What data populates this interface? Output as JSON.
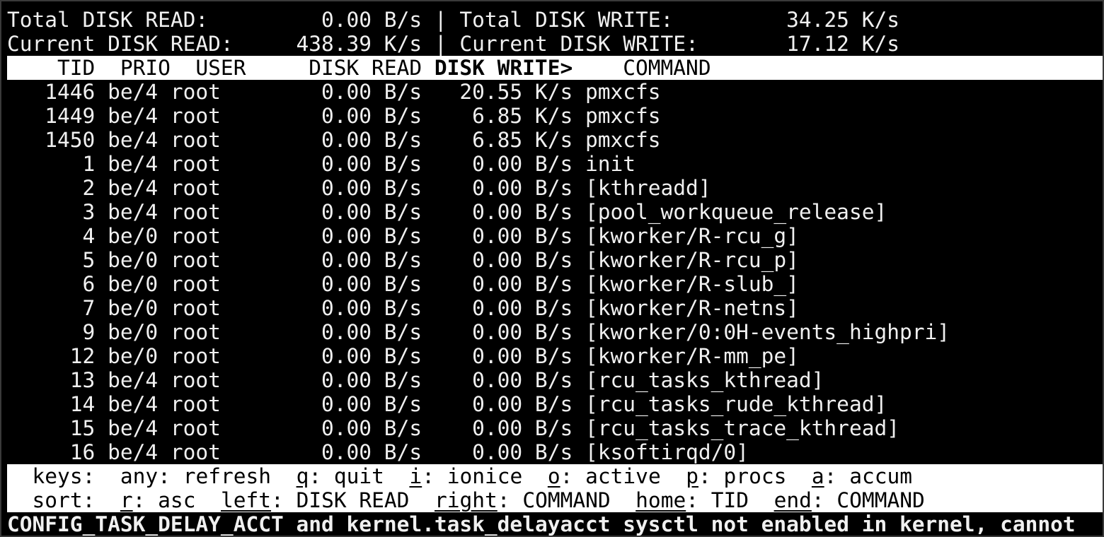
{
  "summary": {
    "total_read_label": "Total DISK READ:",
    "total_read_value": "0.00 B/s",
    "total_write_label": "Total DISK WRITE:",
    "total_write_value": "34.25 K/s",
    "current_read_label": "Current DISK READ:",
    "current_read_value": "438.39 K/s",
    "current_write_label": "Current DISK WRITE:",
    "current_write_value": "17.12 K/s",
    "separator": "|"
  },
  "columns": {
    "tid": "TID",
    "prio": "PRIO",
    "user": "USER",
    "disk_read": "DISK READ",
    "disk_write": "DISK WRITE>",
    "command": "COMMAND",
    "sorted_column": "disk_write"
  },
  "rows": [
    {
      "tid": "1446",
      "prio": "be/4",
      "user": "root",
      "read": "0.00 B/s",
      "write": "20.55 K/s",
      "command": "pmxcfs"
    },
    {
      "tid": "1449",
      "prio": "be/4",
      "user": "root",
      "read": "0.00 B/s",
      "write": "6.85 K/s",
      "command": "pmxcfs"
    },
    {
      "tid": "1450",
      "prio": "be/4",
      "user": "root",
      "read": "0.00 B/s",
      "write": "6.85 K/s",
      "command": "pmxcfs"
    },
    {
      "tid": "1",
      "prio": "be/4",
      "user": "root",
      "read": "0.00 B/s",
      "write": "0.00 B/s",
      "command": "init"
    },
    {
      "tid": "2",
      "prio": "be/4",
      "user": "root",
      "read": "0.00 B/s",
      "write": "0.00 B/s",
      "command": "[kthreadd]"
    },
    {
      "tid": "3",
      "prio": "be/4",
      "user": "root",
      "read": "0.00 B/s",
      "write": "0.00 B/s",
      "command": "[pool_workqueue_release]"
    },
    {
      "tid": "4",
      "prio": "be/0",
      "user": "root",
      "read": "0.00 B/s",
      "write": "0.00 B/s",
      "command": "[kworker/R-rcu_g]"
    },
    {
      "tid": "5",
      "prio": "be/0",
      "user": "root",
      "read": "0.00 B/s",
      "write": "0.00 B/s",
      "command": "[kworker/R-rcu_p]"
    },
    {
      "tid": "6",
      "prio": "be/0",
      "user": "root",
      "read": "0.00 B/s",
      "write": "0.00 B/s",
      "command": "[kworker/R-slub_]"
    },
    {
      "tid": "7",
      "prio": "be/0",
      "user": "root",
      "read": "0.00 B/s",
      "write": "0.00 B/s",
      "command": "[kworker/R-netns]"
    },
    {
      "tid": "9",
      "prio": "be/0",
      "user": "root",
      "read": "0.00 B/s",
      "write": "0.00 B/s",
      "command": "[kworker/0:0H-events_highpri]"
    },
    {
      "tid": "12",
      "prio": "be/0",
      "user": "root",
      "read": "0.00 B/s",
      "write": "0.00 B/s",
      "command": "[kworker/R-mm_pe]"
    },
    {
      "tid": "13",
      "prio": "be/4",
      "user": "root",
      "read": "0.00 B/s",
      "write": "0.00 B/s",
      "command": "[rcu_tasks_kthread]"
    },
    {
      "tid": "14",
      "prio": "be/4",
      "user": "root",
      "read": "0.00 B/s",
      "write": "0.00 B/s",
      "command": "[rcu_tasks_rude_kthread]"
    },
    {
      "tid": "15",
      "prio": "be/4",
      "user": "root",
      "read": "0.00 B/s",
      "write": "0.00 B/s",
      "command": "[rcu_tasks_trace_kthread]"
    },
    {
      "tid": "16",
      "prio": "be/4",
      "user": "root",
      "read": "0.00 B/s",
      "write": "0.00 B/s",
      "command": "[ksoftirqd/0]"
    }
  ],
  "footer": {
    "keys": {
      "label": "keys:",
      "items": [
        {
          "key": "any",
          "action": "refresh",
          "underline": false
        },
        {
          "key": "q",
          "action": "quit",
          "underline": true
        },
        {
          "key": "i",
          "action": "ionice",
          "underline": true
        },
        {
          "key": "o",
          "action": "active",
          "underline": true
        },
        {
          "key": "p",
          "action": "procs",
          "underline": true
        },
        {
          "key": "a",
          "action": "accum",
          "underline": true
        }
      ]
    },
    "sort": {
      "label": "sort:",
      "items": [
        {
          "key": "r",
          "action": "asc",
          "underline": true
        },
        {
          "key": "left",
          "action": "DISK READ",
          "underline": true
        },
        {
          "key": "right",
          "action": "COMMAND",
          "underline": true
        },
        {
          "key": "home",
          "action": "TID",
          "underline": true
        },
        {
          "key": "end",
          "action": "COMMAND",
          "underline": true
        }
      ]
    }
  },
  "status_message": "CONFIG_TASK_DELAY_ACCT and kernel.task_delayacct sysctl not enabled in kernel, cannot",
  "colors": {
    "background": "#000000",
    "foreground": "#f0f0f0",
    "inverse_bar": "#ffffff",
    "border": "#3a3a3a"
  }
}
